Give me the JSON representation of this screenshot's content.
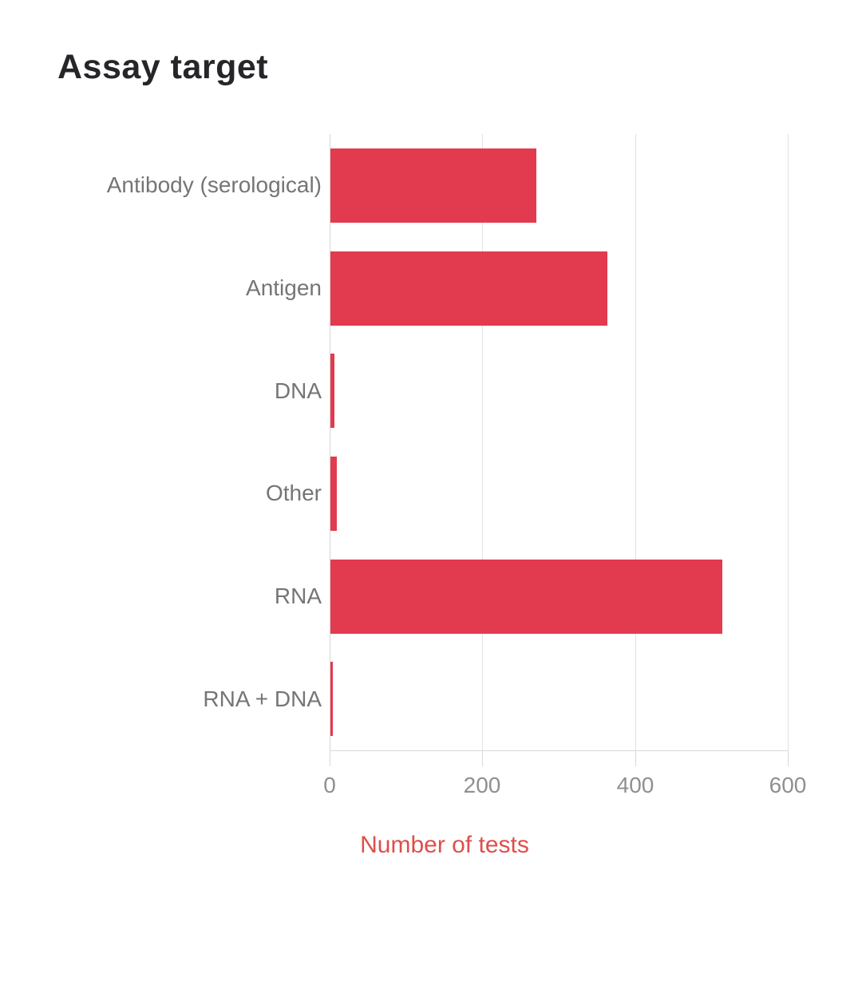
{
  "page": {
    "background_color": "#ffffff"
  },
  "chart_data": {
    "type": "bar",
    "orientation": "horizontal",
    "title": "Assay target",
    "categories": [
      "Antibody (serological)",
      "Antigen",
      "DNA",
      "Other",
      "RNA",
      "RNA + DNA"
    ],
    "values": [
      270,
      363,
      5,
      8,
      513,
      3
    ],
    "xlabel": "Number of tests",
    "ylabel": "",
    "xlim": [
      0,
      600
    ],
    "xticks": [
      0,
      200,
      400,
      600
    ],
    "xtick_labels": [
      "0",
      "200",
      "400",
      "600"
    ],
    "grid": true,
    "legend": false,
    "colors": {
      "bar": "#e23b4f",
      "gridline": "#e2e2e2",
      "axis_line": "#d9d9d9",
      "tick_label": "#8f8f8f",
      "category_label": "#757575",
      "xlabel": "#dd4f4b",
      "title": "#26262a"
    }
  }
}
